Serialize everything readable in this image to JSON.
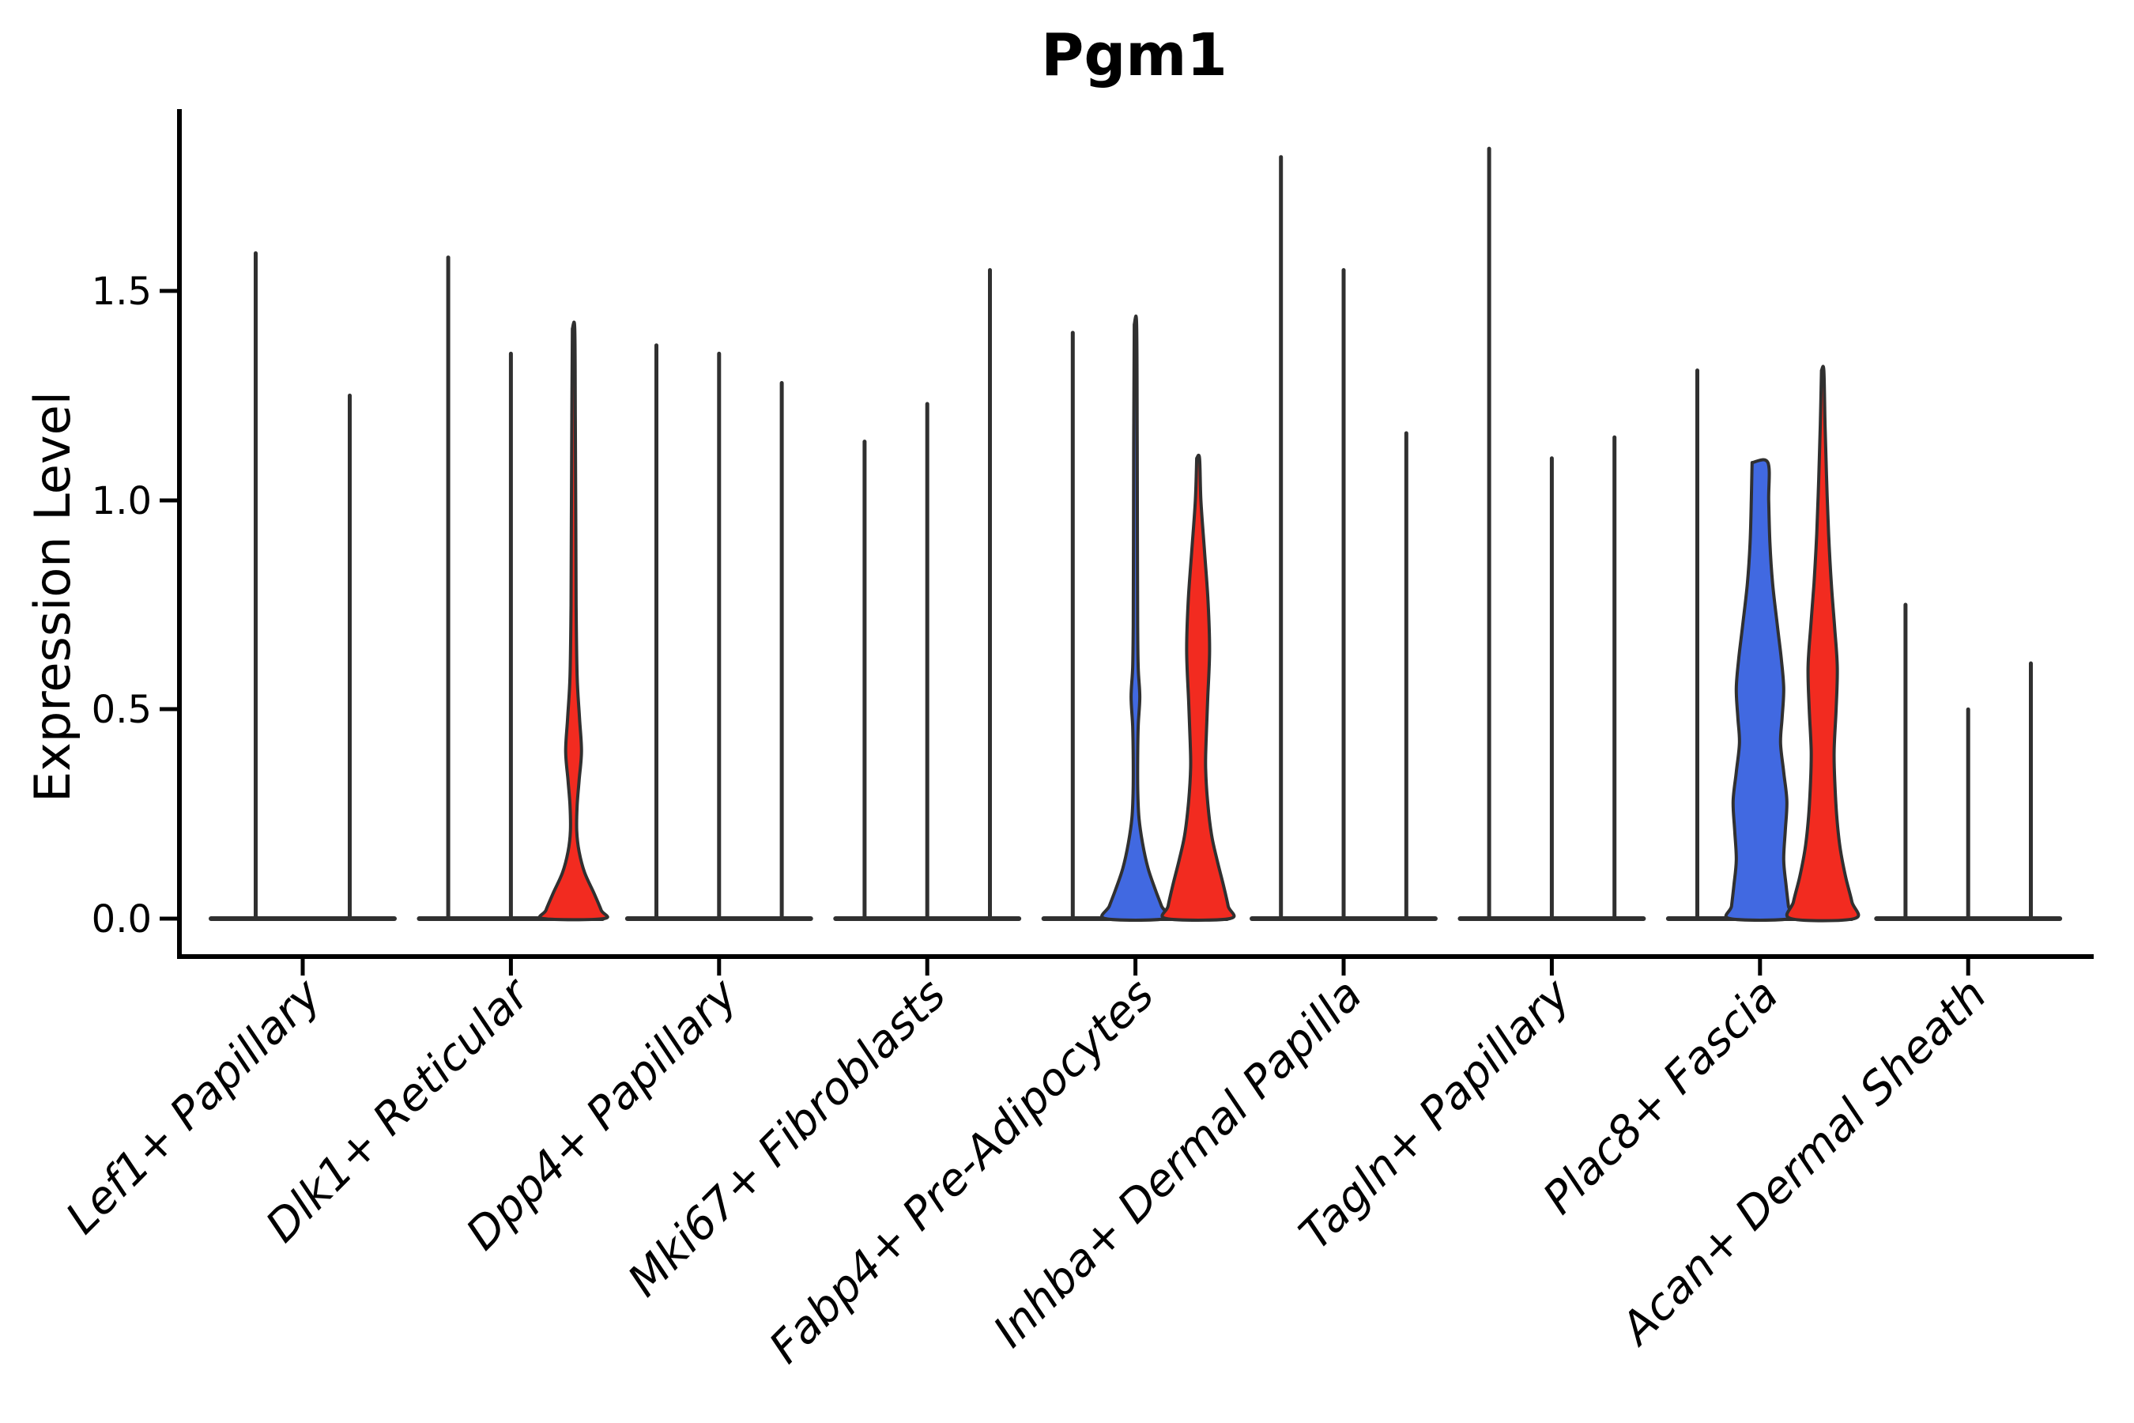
{
  "title": "Pgm1",
  "axes": {
    "ylabel": "Expression Level",
    "ytick_labels": [
      "0.0",
      "0.5",
      "1.0",
      "1.5"
    ]
  },
  "chart_data": {
    "type": "violin",
    "title": "Pgm1",
    "xlabel": "",
    "ylabel": "Expression Level",
    "ylim": [
      0,
      1.93
    ],
    "yticks": [
      0.0,
      0.5,
      1.0,
      1.5
    ],
    "grid": false,
    "legend": "none",
    "colors": {
      "blue": "#4169E1",
      "red": "#F22B20",
      "outline": "#303030",
      "axis": "#000000"
    },
    "categories": [
      {
        "label": "Lef1+ Papillary",
        "violins": [
          {
            "style": "line",
            "max": 1.59
          },
          {
            "style": "line",
            "max": 1.25
          }
        ]
      },
      {
        "label": "Dlk1+ Reticular",
        "violins": [
          {
            "style": "line",
            "max": 1.58
          },
          {
            "style": "line",
            "max": 1.35
          },
          {
            "style": "shape",
            "fill": "red",
            "max": 1.41,
            "cap": "point",
            "profile": [
              [
                1.41,
                1.5
              ],
              [
                1.2,
                2.2
              ],
              [
                0.95,
                2.8
              ],
              [
                0.75,
                3.2
              ],
              [
                0.58,
                4.5
              ],
              [
                0.48,
                7.5
              ],
              [
                0.4,
                10
              ],
              [
                0.33,
                7
              ],
              [
                0.27,
                4.5
              ],
              [
                0.21,
                4
              ],
              [
                0.16,
                7
              ],
              [
                0.11,
                14
              ],
              [
                0.06,
                26
              ],
              [
                0.02,
                35
              ],
              [
                0,
                38
              ]
            ]
          }
        ]
      },
      {
        "label": "Dpp4+ Papillary",
        "violins": [
          {
            "style": "line",
            "max": 1.37
          },
          {
            "style": "line",
            "max": 1.35
          },
          {
            "style": "line",
            "max": 1.28
          }
        ]
      },
      {
        "label": "Mki67+ Fibroblasts",
        "violins": [
          {
            "style": "line",
            "max": 1.14
          },
          {
            "style": "line",
            "max": 1.23
          },
          {
            "style": "line",
            "max": 1.55
          }
        ]
      },
      {
        "label": "Fabp4+ Pre-Adipocytes",
        "violins": [
          {
            "style": "line",
            "max": 1.4
          },
          {
            "style": "shape",
            "fill": "blue",
            "max": 1.42,
            "cap": "point",
            "profile": [
              [
                1.42,
                1.5
              ],
              [
                1.15,
                2.2
              ],
              [
                0.9,
                2.5
              ],
              [
                0.7,
                2.8
              ],
              [
                0.6,
                3.5
              ],
              [
                0.53,
                5.5
              ],
              [
                0.46,
                3.5
              ],
              [
                0.38,
                2.8
              ],
              [
                0.3,
                3
              ],
              [
                0.24,
                4.5
              ],
              [
                0.18,
                9
              ],
              [
                0.12,
                16
              ],
              [
                0.07,
                25
              ],
              [
                0.03,
                33
              ],
              [
                0,
                38
              ]
            ]
          },
          {
            "style": "shape",
            "fill": "red",
            "max": 1.1,
            "cap": "point",
            "profile": [
              [
                1.1,
                1.8
              ],
              [
                1.0,
                3.5
              ],
              [
                0.88,
                8
              ],
              [
                0.76,
                12.5
              ],
              [
                0.64,
                14.5
              ],
              [
                0.52,
                12
              ],
              [
                0.42,
                10
              ],
              [
                0.36,
                9.5
              ],
              [
                0.28,
                12
              ],
              [
                0.2,
                17
              ],
              [
                0.14,
                24
              ],
              [
                0.08,
                32
              ],
              [
                0.03,
                38
              ],
              [
                0,
                40
              ]
            ]
          }
        ]
      },
      {
        "label": "Inhba+ Dermal Papilla",
        "violins": [
          {
            "style": "line",
            "max": 1.82
          },
          {
            "style": "line",
            "max": 1.55
          },
          {
            "style": "line",
            "max": 1.16
          }
        ]
      },
      {
        "label": "Tagln+ Papillary",
        "violins": [
          {
            "style": "line",
            "max": 1.84
          },
          {
            "style": "line",
            "max": 1.1
          },
          {
            "style": "line",
            "max": 1.15
          }
        ]
      },
      {
        "label": "Plac8+ Fascia",
        "violins": [
          {
            "style": "line",
            "max": 1.31
          },
          {
            "style": "shape",
            "fill": "blue",
            "max": 1.09,
            "cap": "flat",
            "profile": [
              [
                1.09,
                10
              ],
              [
                1.0,
                11
              ],
              [
                0.9,
                12.5
              ],
              [
                0.8,
                16
              ],
              [
                0.7,
                22
              ],
              [
                0.62,
                27
              ],
              [
                0.55,
                30
              ],
              [
                0.48,
                28
              ],
              [
                0.42,
                26
              ],
              [
                0.35,
                30
              ],
              [
                0.28,
                34
              ],
              [
                0.21,
                32
              ],
              [
                0.14,
                30
              ],
              [
                0.08,
                33
              ],
              [
                0.03,
                36
              ],
              [
                0,
                38
              ]
            ]
          },
          {
            "style": "shape",
            "fill": "red",
            "max": 1.31,
            "cap": "point",
            "profile": [
              [
                1.31,
                1.5
              ],
              [
                1.18,
                3
              ],
              [
                1.05,
                5
              ],
              [
                0.92,
                7.5
              ],
              [
                0.8,
                11
              ],
              [
                0.7,
                15
              ],
              [
                0.6,
                18.5
              ],
              [
                0.5,
                17
              ],
              [
                0.4,
                14.5
              ],
              [
                0.32,
                15.5
              ],
              [
                0.24,
                18
              ],
              [
                0.17,
                22
              ],
              [
                0.1,
                29
              ],
              [
                0.04,
                37
              ],
              [
                0,
                40
              ]
            ]
          }
        ]
      },
      {
        "label": "Acan+ Dermal Sheath",
        "violins": [
          {
            "style": "line",
            "max": 0.75
          },
          {
            "style": "line",
            "max": 0.5
          },
          {
            "style": "line",
            "max": 0.61
          }
        ]
      }
    ]
  }
}
